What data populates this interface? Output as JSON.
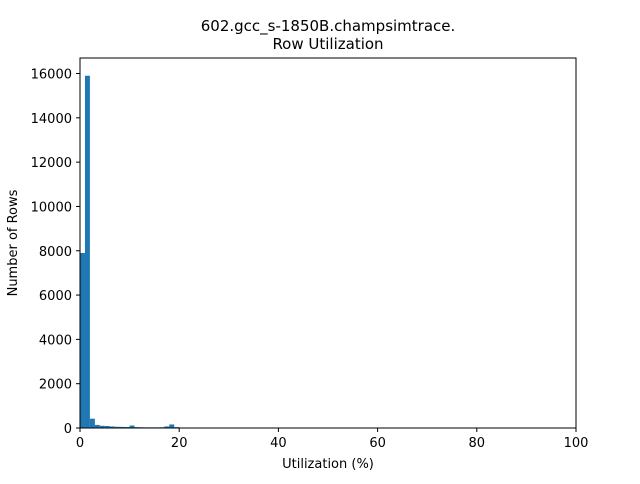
{
  "chart_data": {
    "type": "bar",
    "title_lines": [
      "602.gcc_s-1850B.champsimtrace.",
      "Row Utilization"
    ],
    "xlabel": "Utilization (%)",
    "ylabel": "Number of Rows",
    "xlim": [
      0,
      100
    ],
    "ylim": [
      0,
      16700
    ],
    "xticks": [
      0,
      20,
      40,
      60,
      80,
      100
    ],
    "yticks": [
      0,
      2000,
      4000,
      6000,
      8000,
      10000,
      12000,
      14000,
      16000
    ],
    "grid": false,
    "bin_width": 1,
    "bins": [
      {
        "x": 0,
        "value": 7900
      },
      {
        "x": 1,
        "value": 15900
      },
      {
        "x": 2,
        "value": 420
      },
      {
        "x": 3,
        "value": 140
      },
      {
        "x": 4,
        "value": 100
      },
      {
        "x": 5,
        "value": 90
      },
      {
        "x": 6,
        "value": 70
      },
      {
        "x": 7,
        "value": 55
      },
      {
        "x": 8,
        "value": 50
      },
      {
        "x": 9,
        "value": 45
      },
      {
        "x": 10,
        "value": 110
      },
      {
        "x": 11,
        "value": 40
      },
      {
        "x": 12,
        "value": 35
      },
      {
        "x": 13,
        "value": 30
      },
      {
        "x": 14,
        "value": 30
      },
      {
        "x": 15,
        "value": 30
      },
      {
        "x": 16,
        "value": 35
      },
      {
        "x": 17,
        "value": 70
      },
      {
        "x": 18,
        "value": 160
      },
      {
        "x": 19,
        "value": 40
      }
    ],
    "color": "#1f77b4"
  }
}
